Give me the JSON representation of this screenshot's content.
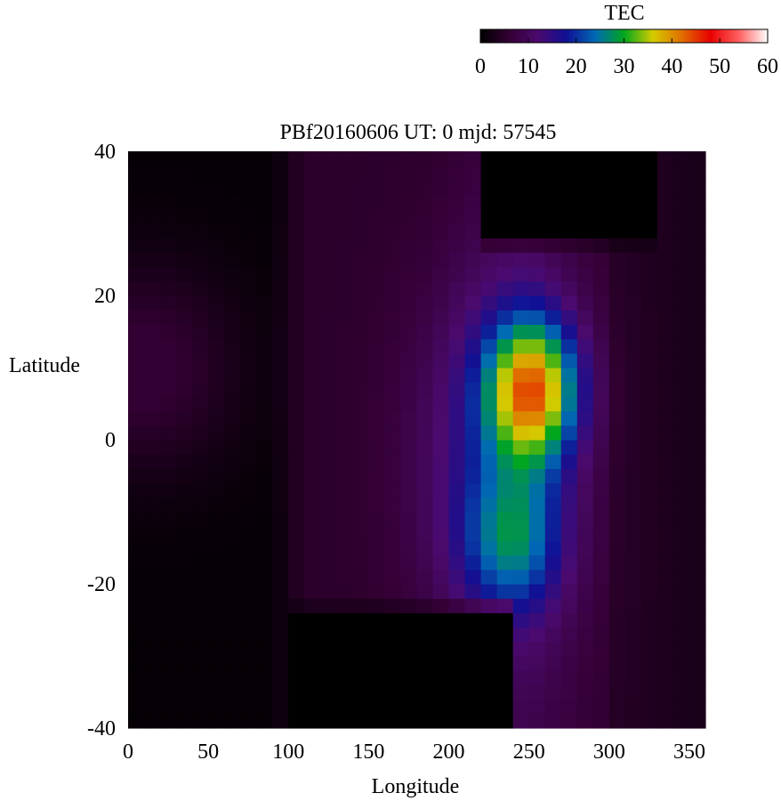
{
  "chart_data": {
    "type": "heatmap",
    "title": "PBf20160606  UT: 0  mjd: 57545",
    "xlabel": "Longitude",
    "ylabel": "Latitude",
    "xlim": [
      0,
      360
    ],
    "ylim": [
      -40,
      40
    ],
    "xticks": [
      "0",
      "50",
      "100",
      "150",
      "200",
      "250",
      "300",
      "350"
    ],
    "yticks": [
      "40",
      "20",
      "0",
      "-20",
      "-40"
    ],
    "grid": false,
    "grid_resolution": {
      "dlon": 10,
      "dlat": 2
    },
    "colorbar": {
      "label": "TEC",
      "range": [
        0,
        60
      ],
      "ticks": [
        "0",
        "10",
        "20",
        "30",
        "40",
        "50",
        "60"
      ],
      "placement": "top-right",
      "colormap": [
        "#000000",
        "#330033",
        "#4b0a6e",
        "#101094",
        "#006ab4",
        "#00a61e",
        "#d4cc00",
        "#e07000",
        "#e80000",
        "#ff6060",
        "#ffffff"
      ]
    },
    "features": [
      {
        "name": "equatorial anomaly peak",
        "lon": 252,
        "lat": 7,
        "tec": 37
      },
      {
        "name": "southern crest",
        "lon": 240,
        "lat": -17,
        "tec": 27
      },
      {
        "name": "low-TEC region",
        "lon_range": [
          0,
          90
        ],
        "lat_range": [
          -40,
          40
        ],
        "tec": 2
      },
      {
        "name": "high-latitude north minimum",
        "lon_range": [
          210,
          330
        ],
        "lat_range": [
          28,
          40
        ],
        "tec": 0
      },
      {
        "name": "high-latitude south minimum",
        "lon_range": [
          100,
          240
        ],
        "lat_range": [
          -40,
          -25
        ],
        "tec": 0
      }
    ]
  }
}
